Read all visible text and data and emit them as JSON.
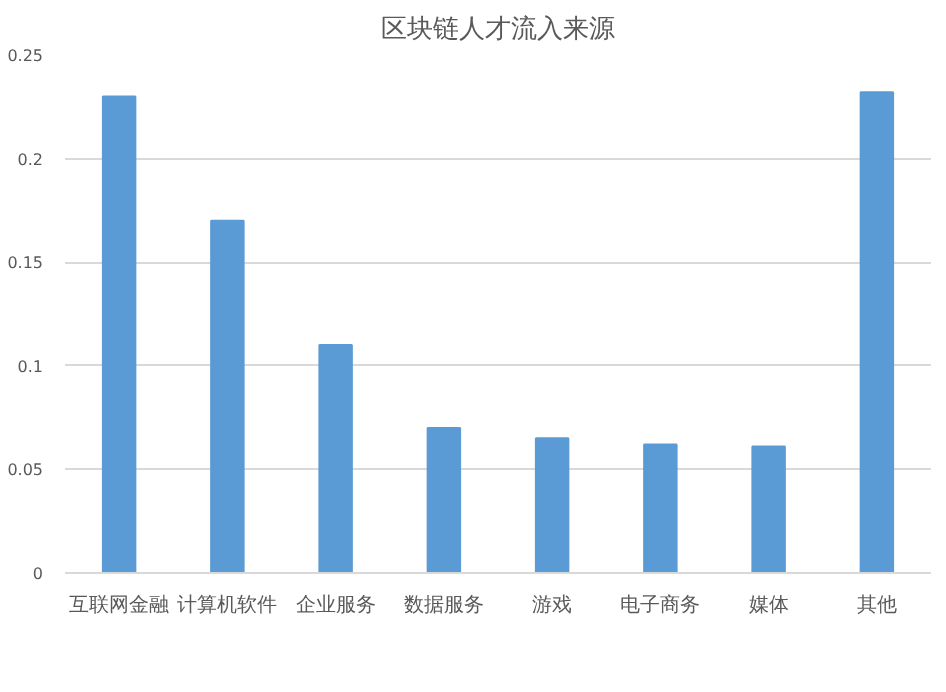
{
  "chart_data": {
    "type": "bar",
    "title": "区块链人才流入来源",
    "categories": [
      "互联网金融",
      "计算机软件",
      "企业服务",
      "数据服务",
      "游戏",
      "电子商务",
      "媒体",
      "其他"
    ],
    "values": [
      0.23,
      0.17,
      0.11,
      0.07,
      0.065,
      0.062,
      0.061,
      0.232
    ],
    "color": "#5b9bd5",
    "ylim": [
      0,
      0.25
    ],
    "yticks": [
      0,
      0.05,
      0.1,
      0.15,
      0.2,
      0.25
    ],
    "grid": "y"
  }
}
